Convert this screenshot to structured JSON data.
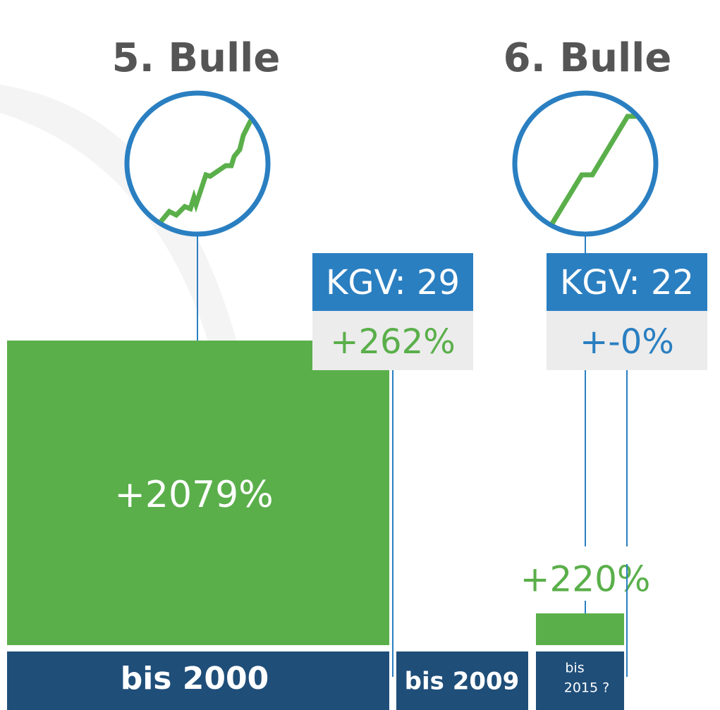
{
  "bubble_5": {
    "title": "5. Bulle",
    "kgv": "KGV: 29",
    "change": "+262%",
    "growth": "+2079%",
    "period": "bis 2000"
  },
  "between": {
    "period": "bis 2009"
  },
  "bubble_6": {
    "title": "6. Bulle",
    "kgv": "KGV: 22",
    "change": "+-0%",
    "growth": "+220%",
    "period": [
      "bis",
      "2015 ?"
    ]
  }
}
